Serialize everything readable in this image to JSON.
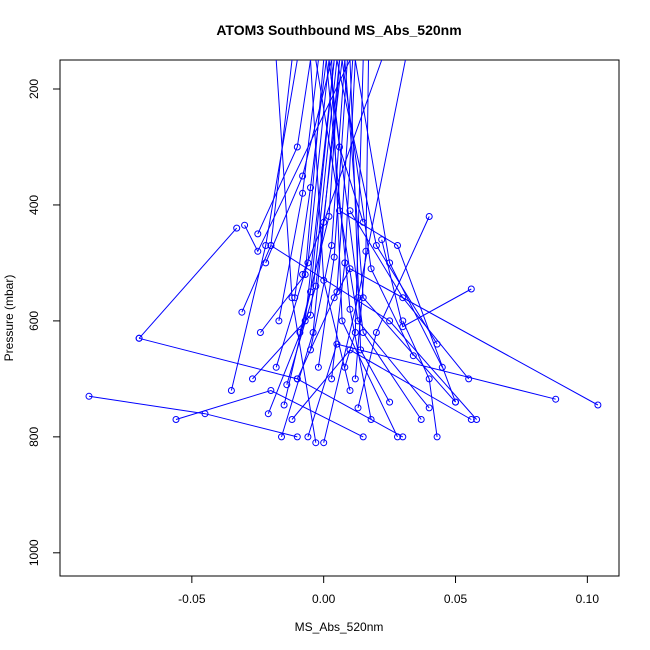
{
  "chart_data": {
    "type": "line",
    "title": "ATOM3 Southbound MS_Abs_520nm",
    "xlabel": "MS_Abs_520nm",
    "ylabel": "Pressure (mbar)",
    "xlim": [
      -0.1,
      0.112
    ],
    "ylim": [
      1040,
      150
    ],
    "y_reversed": true,
    "grid": false,
    "legend": "none",
    "x_ticks": [
      -0.05,
      0.0,
      0.05,
      0.1
    ],
    "x_tick_labels": [
      "-0.05",
      "0.00",
      "0.05",
      "0.10"
    ],
    "y_ticks": [
      200,
      400,
      600,
      800,
      1000
    ],
    "y_tick_labels": [
      "200",
      "400",
      "600",
      "800",
      "1000"
    ],
    "series_color": "#0000ff",
    "series": [
      {
        "x": [
          -0.089,
          -0.045,
          -0.01
        ],
        "y": [
          730,
          760,
          800
        ]
      },
      {
        "x": [
          -0.07,
          -0.01,
          0.03
        ],
        "y": [
          630,
          700,
          800
        ]
      },
      {
        "x": [
          -0.056,
          -0.02,
          0.015
        ],
        "y": [
          770,
          720,
          800
        ]
      },
      {
        "x": [
          -0.035,
          -0.022,
          -0.01
        ],
        "y": [
          720,
          470,
          150
        ]
      },
      {
        "x": [
          -0.03,
          -0.025,
          0.01
        ],
        "y": [
          435,
          480,
          150
        ]
      },
      {
        "x": [
          -0.033,
          -0.07
        ],
        "y": [
          440,
          630
        ]
      },
      {
        "x": [
          -0.021,
          -0.007,
          0.004
        ],
        "y": [
          760,
          600,
          150
        ]
      },
      {
        "x": [
          -0.02,
          0.025,
          0.058
        ],
        "y": [
          470,
          600,
          770
        ]
      },
      {
        "x": [
          -0.016,
          -0.004,
          0.006
        ],
        "y": [
          800,
          620,
          150
        ]
      },
      {
        "x": [
          -0.012,
          0.01,
          0.056
        ],
        "y": [
          770,
          650,
          770
        ]
      },
      {
        "x": [
          -0.01,
          0.005,
          0.011
        ],
        "y": [
          700,
          550,
          150
        ]
      },
      {
        "x": [
          -0.008,
          0.0,
          0.022
        ],
        "y": [
          520,
          430,
          150
        ]
      },
      {
        "x": [
          -0.006,
          0.005,
          0.088
        ],
        "y": [
          800,
          640,
          735
        ]
      },
      {
        "x": [
          -0.003,
          -0.012,
          -0.018
        ],
        "y": [
          810,
          560,
          150
        ]
      },
      {
        "x": [
          0.0,
          0.013,
          0.031
        ],
        "y": [
          810,
          560,
          150
        ]
      },
      {
        "x": [
          0.004,
          0.01,
          0.104
        ],
        "y": [
          560,
          510,
          745
        ]
      },
      {
        "x": [
          0.006,
          0.028,
          0.05
        ],
        "y": [
          410,
          470,
          740
        ]
      },
      {
        "x": [
          0.008,
          0.012,
          0.015
        ],
        "y": [
          680,
          620,
          150
        ]
      },
      {
        "x": [
          0.01,
          0.0,
          -0.005
        ],
        "y": [
          720,
          530,
          150
        ]
      },
      {
        "x": [
          0.013,
          0.02,
          0.04
        ],
        "y": [
          750,
          620,
          420
        ]
      },
      {
        "x": [
          0.015,
          0.006,
          0.002
        ],
        "y": [
          430,
          300,
          150
        ]
      },
      {
        "x": [
          0.018,
          0.01,
          0.001
        ],
        "y": [
          770,
          580,
          150
        ]
      },
      {
        "x": [
          0.022,
          0.03,
          0.056
        ],
        "y": [
          460,
          610,
          545
        ]
      },
      {
        "x": [
          0.025,
          0.014,
          0.01
        ],
        "y": [
          740,
          650,
          150
        ]
      },
      {
        "x": [
          0.028,
          0.007,
          0.003
        ],
        "y": [
          800,
          600,
          150
        ]
      },
      {
        "x": [
          0.03,
          0.04,
          0.043
        ],
        "y": [
          600,
          700,
          800
        ]
      },
      {
        "x": [
          0.034,
          0.018,
          0.007
        ],
        "y": [
          660,
          510,
          150
        ]
      },
      {
        "x": [
          0.037,
          0.015,
          0.002
        ],
        "y": [
          770,
          620,
          150
        ]
      },
      {
        "x": [
          0.04,
          0.013,
          -0.003
        ],
        "y": [
          750,
          600,
          150
        ]
      },
      {
        "x": [
          0.043,
          0.02,
          0.005
        ],
        "y": [
          640,
          470,
          150
        ]
      },
      {
        "x": [
          0.05,
          0.015,
          0.008
        ],
        "y": [
          740,
          560,
          150
        ]
      },
      {
        "x": [
          -0.027,
          -0.005,
          0.005
        ],
        "y": [
          700,
          590,
          150
        ]
      },
      {
        "x": [
          -0.024,
          -0.007,
          0.0
        ],
        "y": [
          620,
          520,
          150
        ]
      },
      {
        "x": [
          -0.018,
          -0.006,
          0.002
        ],
        "y": [
          680,
          500,
          150
        ]
      },
      {
        "x": [
          -0.014,
          -0.003,
          0.007
        ],
        "y": [
          710,
          540,
          150
        ]
      },
      {
        "x": [
          -0.025,
          -0.01,
          -0.005
        ],
        "y": [
          450,
          300,
          150
        ]
      },
      {
        "x": [
          -0.022,
          -0.008,
          0.003
        ],
        "y": [
          500,
          350,
          150
        ]
      },
      {
        "x": [
          -0.017,
          -0.008,
          -0.002
        ],
        "y": [
          600,
          380,
          150
        ]
      },
      {
        "x": [
          -0.011,
          -0.005,
          0.001
        ],
        "y": [
          560,
          370,
          150
        ]
      },
      {
        "x": [
          -0.009,
          0.002,
          0.006
        ],
        "y": [
          620,
          420,
          150
        ]
      },
      {
        "x": [
          -0.005,
          0.003,
          0.008
        ],
        "y": [
          650,
          470,
          150
        ]
      },
      {
        "x": [
          -0.002,
          0.004,
          0.009
        ],
        "y": [
          680,
          490,
          150
        ]
      },
      {
        "x": [
          0.003,
          0.008,
          0.012
        ],
        "y": [
          700,
          500,
          150
        ]
      },
      {
        "x": [
          0.012,
          0.016,
          0.017
        ],
        "y": [
          700,
          480,
          150
        ]
      },
      {
        "x": [
          -0.031,
          -0.02,
          -0.012
        ],
        "y": [
          585,
          470,
          150
        ]
      },
      {
        "x": [
          -0.015,
          -0.005,
          0.004
        ],
        "y": [
          745,
          550,
          150
        ]
      },
      {
        "x": [
          0.045,
          0.025,
          0.012
        ],
        "y": [
          680,
          500,
          150
        ]
      },
      {
        "x": [
          0.055,
          0.03,
          0.01
        ],
        "y": [
          700,
          560,
          410
        ]
      }
    ]
  }
}
